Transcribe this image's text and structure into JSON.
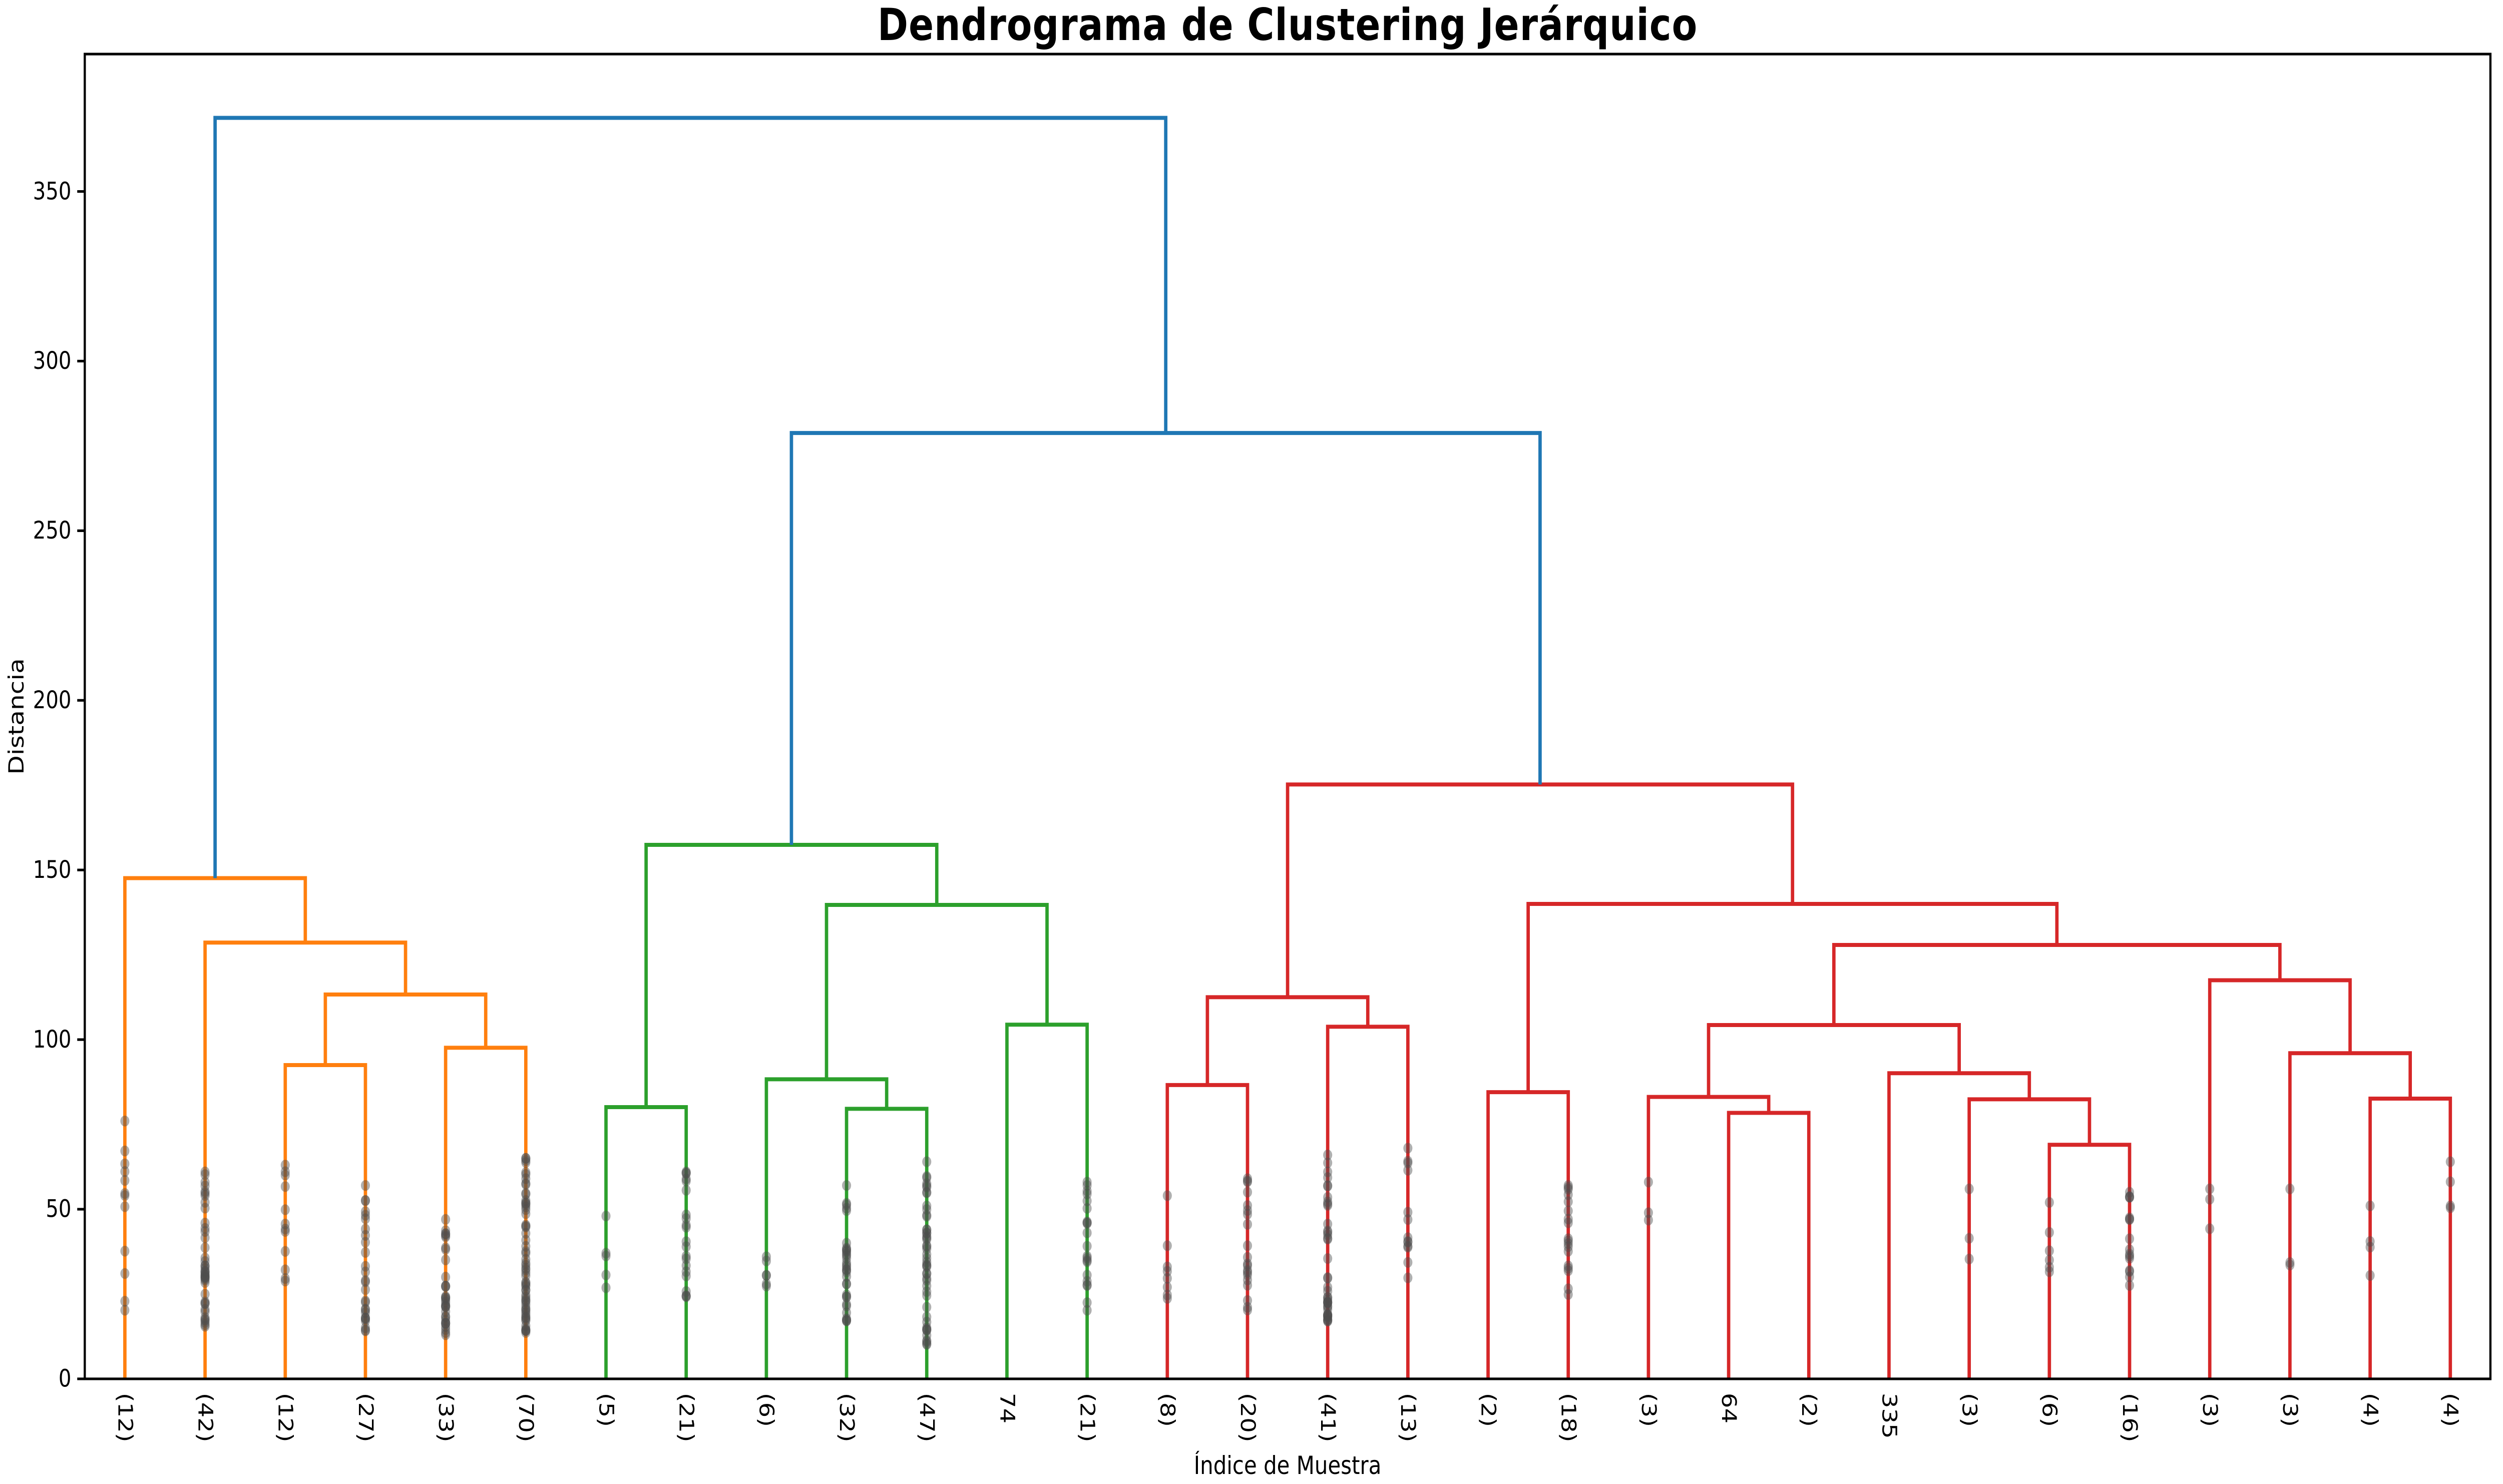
{
  "title": "Dendrograma de Clustering Jerárquico",
  "xlabel": "Índice de Muestra",
  "ylabel": "Distancia",
  "chart_data": {
    "type": "dendrogram",
    "title": "Dendrograma de Clustering Jerárquico",
    "xlabel": "Índice de Muestra",
    "ylabel": "Distancia",
    "axes": {
      "ylim": [
        0,
        390.5
      ],
      "yticks": [
        0,
        50,
        100,
        150,
        200,
        250,
        300,
        350
      ],
      "xlim": [
        0,
        300
      ],
      "grid": false
    },
    "colors": {
      "above_threshold": "#1f77b4",
      "cluster1": "#ff7f0e",
      "cluster2": "#2ca02c",
      "cluster3": "#d62728",
      "scatter": "#4d4d4d",
      "axis": "#000000"
    },
    "leaves": [
      {
        "label": "(12)",
        "count": 12,
        "group": "cluster1",
        "dot_range": [
          20,
          76
        ]
      },
      {
        "label": "(42)",
        "count": 42,
        "group": "cluster1",
        "dot_range": [
          15,
          61
        ]
      },
      {
        "label": "(12)",
        "count": 12,
        "group": "cluster1",
        "dot_range": [
          28,
          63
        ]
      },
      {
        "label": "(27)",
        "count": 27,
        "group": "cluster1",
        "dot_range": [
          14,
          57
        ]
      },
      {
        "label": "(33)",
        "count": 33,
        "group": "cluster1",
        "dot_range": [
          13,
          47
        ]
      },
      {
        "label": "(70)",
        "count": 70,
        "group": "cluster1",
        "dot_range": [
          13,
          65
        ]
      },
      {
        "label": "(5)",
        "count": 5,
        "group": "cluster2",
        "dot_range": [
          24,
          48
        ]
      },
      {
        "label": "(21)",
        "count": 21,
        "group": "cluster2",
        "dot_range": [
          24,
          61
        ]
      },
      {
        "label": "(6)",
        "count": 6,
        "group": "cluster2",
        "dot_range": [
          24,
          36
        ]
      },
      {
        "label": "(32)",
        "count": 32,
        "group": "cluster2",
        "dot_range": [
          17,
          57
        ]
      },
      {
        "label": "(47)",
        "count": 47,
        "group": "cluster2",
        "dot_range": [
          10,
          64
        ]
      },
      {
        "label": "74",
        "count": 1,
        "group": "cluster2",
        "dot_range": null
      },
      {
        "label": "(21)",
        "count": 21,
        "group": "cluster2",
        "dot_range": [
          15,
          58
        ]
      },
      {
        "label": "(8)",
        "count": 8,
        "group": "cluster3",
        "dot_range": [
          23,
          54
        ]
      },
      {
        "label": "(20)",
        "count": 20,
        "group": "cluster3",
        "dot_range": [
          20,
          59
        ]
      },
      {
        "label": "(41)",
        "count": 41,
        "group": "cluster3",
        "dot_range": [
          17,
          66
        ]
      },
      {
        "label": "(13)",
        "count": 13,
        "group": "cluster3",
        "dot_range": [
          23,
          68
        ]
      },
      {
        "label": "(2)",
        "count": 2,
        "group": "cluster3",
        "dot_range": null
      },
      {
        "label": "(18)",
        "count": 18,
        "group": "cluster3",
        "dot_range": [
          21,
          57
        ]
      },
      {
        "label": "(3)",
        "count": 3,
        "group": "cluster3",
        "dot_range": [
          36,
          58
        ]
      },
      {
        "label": "64",
        "count": 1,
        "group": "cluster3",
        "dot_range": null
      },
      {
        "label": "(2)",
        "count": 2,
        "group": "cluster3",
        "dot_range": null
      },
      {
        "label": "335",
        "count": 1,
        "group": "cluster3",
        "dot_range": null
      },
      {
        "label": "(3)",
        "count": 3,
        "group": "cluster3",
        "dot_range": [
          35,
          56
        ]
      },
      {
        "label": "(6)",
        "count": 6,
        "group": "cluster3",
        "dot_range": [
          30,
          52
        ]
      },
      {
        "label": "(16)",
        "count": 16,
        "group": "cluster3",
        "dot_range": [
          22,
          55
        ]
      },
      {
        "label": "(3)",
        "count": 3,
        "group": "cluster3",
        "dot_range": [
          33,
          56
        ]
      },
      {
        "label": "(3)",
        "count": 3,
        "group": "cluster3",
        "dot_range": [
          30,
          56
        ]
      },
      {
        "label": "(4)",
        "count": 4,
        "group": "cluster3",
        "dot_range": [
          30,
          51
        ]
      },
      {
        "label": "(4)",
        "count": 4,
        "group": "cluster3",
        "dot_range": [
          48,
          64
        ]
      }
    ],
    "tree": {
      "h": 371.7,
      "color": "#1f77b4",
      "children": [
        {
          "h": 147.6,
          "color": "#ff7f0e",
          "children": [
            {
              "leaf": 0
            },
            {
              "h": 128.6,
              "color": "#ff7f0e",
              "children": [
                {
                  "leaf": 1
                },
                {
                  "h": 113.3,
                  "color": "#ff7f0e",
                  "children": [
                    {
                      "h": 92.5,
                      "color": "#ff7f0e",
                      "children": [
                        {
                          "leaf": 2
                        },
                        {
                          "leaf": 3
                        }
                      ]
                    },
                    {
                      "h": 97.6,
                      "color": "#ff7f0e",
                      "children": [
                        {
                          "leaf": 4
                        },
                        {
                          "leaf": 5
                        }
                      ]
                    }
                  ]
                }
              ]
            }
          ]
        },
        {
          "h": 278.8,
          "color": "#1f77b4",
          "children": [
            {
              "h": 157.4,
              "color": "#2ca02c",
              "children": [
                {
                  "h": 80.1,
                  "color": "#2ca02c",
                  "children": [
                    {
                      "leaf": 6
                    },
                    {
                      "leaf": 7
                    }
                  ]
                },
                {
                  "h": 139.7,
                  "color": "#2ca02c",
                  "children": [
                    {
                      "h": 88.3,
                      "color": "#2ca02c",
                      "children": [
                        {
                          "leaf": 8
                        },
                        {
                          "h": 79.6,
                          "color": "#2ca02c",
                          "children": [
                            {
                              "leaf": 9
                            },
                            {
                              "leaf": 10
                            }
                          ]
                        }
                      ]
                    },
                    {
                      "h": 104.4,
                      "color": "#2ca02c",
                      "children": [
                        {
                          "leaf": 11
                        },
                        {
                          "leaf": 12
                        }
                      ]
                    }
                  ]
                }
              ]
            },
            {
              "h": 175.2,
              "color": "#d62728",
              "children": [
                {
                  "h": 112.5,
                  "color": "#d62728",
                  "children": [
                    {
                      "h": 86.6,
                      "color": "#d62728",
                      "children": [
                        {
                          "leaf": 13
                        },
                        {
                          "leaf": 14
                        }
                      ]
                    },
                    {
                      "h": 103.8,
                      "color": "#d62728",
                      "children": [
                        {
                          "leaf": 15
                        },
                        {
                          "leaf": 16
                        }
                      ]
                    }
                  ]
                },
                {
                  "h": 140.0,
                  "color": "#d62728",
                  "children": [
                    {
                      "h": 84.5,
                      "color": "#d62728",
                      "children": [
                        {
                          "leaf": 17
                        },
                        {
                          "leaf": 18
                        }
                      ]
                    },
                    {
                      "h": 127.9,
                      "color": "#d62728",
                      "children": [
                        {
                          "h": 104.3,
                          "color": "#d62728",
                          "children": [
                            {
                              "h": 83.1,
                              "color": "#d62728",
                              "children": [
                                {
                                  "leaf": 19
                                },
                                {
                                  "h": 78.4,
                                  "color": "#d62728",
                                  "children": [
                                    {
                                      "leaf": 20
                                    },
                                    {
                                      "leaf": 21
                                    }
                                  ]
                                }
                              ]
                            },
                            {
                              "h": 90.1,
                              "color": "#d62728",
                              "children": [
                                {
                                  "leaf": 22
                                },
                                {
                                  "h": 82.4,
                                  "color": "#d62728",
                                  "children": [
                                    {
                                      "leaf": 23
                                    },
                                    {
                                      "h": 69.0,
                                      "color": "#d62728",
                                      "children": [
                                        {
                                          "leaf": 24
                                        },
                                        {
                                          "leaf": 25
                                        }
                                      ]
                                    }
                                  ]
                                }
                              ]
                            }
                          ]
                        },
                        {
                          "h": 117.5,
                          "color": "#d62728",
                          "children": [
                            {
                              "leaf": 26
                            },
                            {
                              "h": 96.0,
                              "color": "#d62728",
                              "children": [
                                {
                                  "leaf": 27
                                },
                                {
                                  "h": 82.6,
                                  "color": "#d62728",
                                  "children": [
                                    {
                                      "leaf": 28
                                    },
                                    {
                                      "leaf": 29
                                    }
                                  ]
                                }
                              ]
                            }
                          ]
                        }
                      ]
                    }
                  ]
                }
              ]
            }
          ]
        }
      ]
    },
    "scatter": {
      "opacity": 0.45,
      "shape": "circle",
      "note": "gray sample points drawn along cluster leaf stems; singleton leaves have none"
    }
  }
}
